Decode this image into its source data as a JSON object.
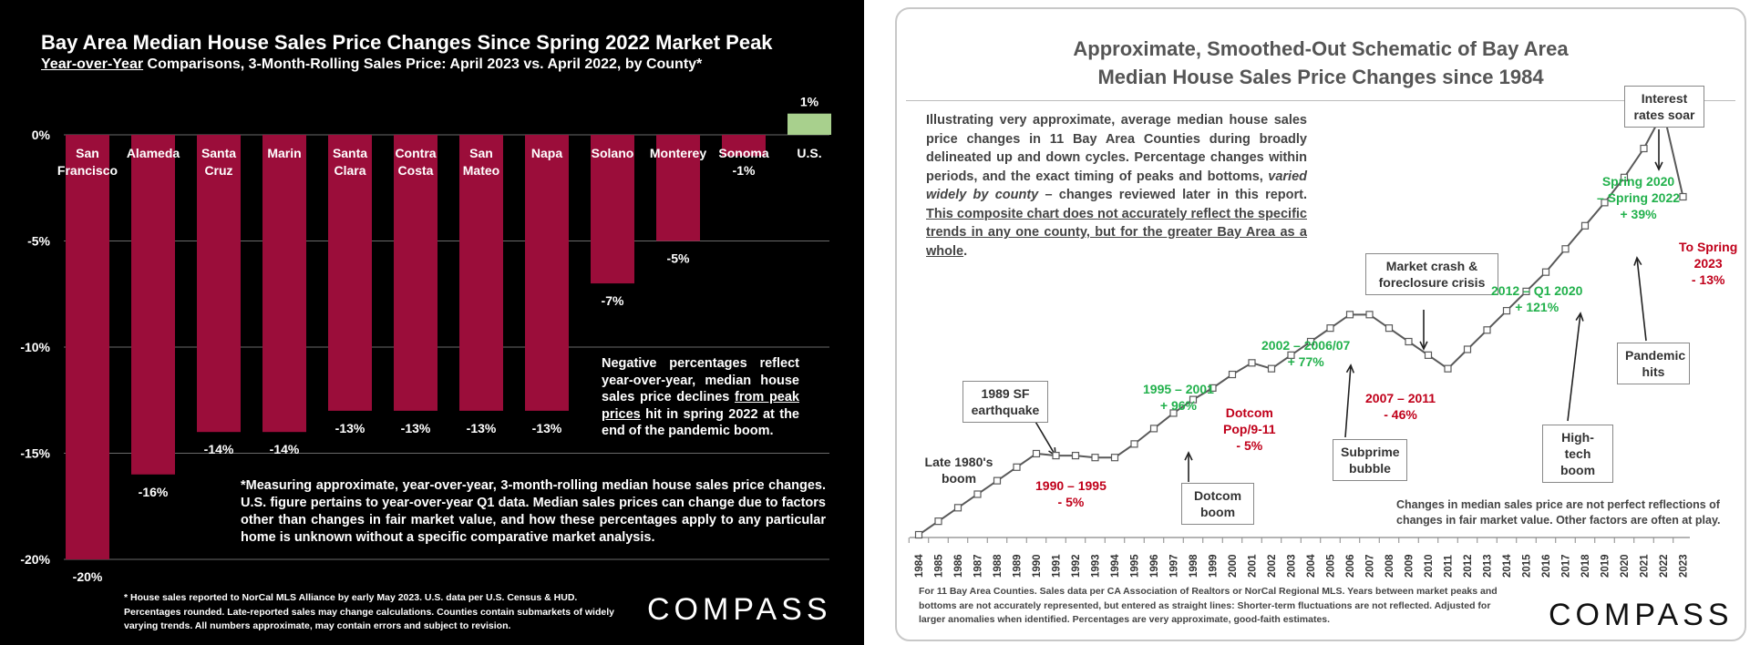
{
  "left_panel": {
    "title": "Bay Area Median House Sales Price Changes Since Spring 2022 Market Peak",
    "subtitle_underlined": "Year-over-Year",
    "subtitle_rest": " Comparisons, 3-Month-Rolling Sales Price: April 2023 vs. April 2022, by County*",
    "note_1_a": "Negative percentages reflect year-over-year, median house sales price declines ",
    "note_1_u": "from peak prices",
    "note_1_b": " hit in spring 2022 at the end of the pandemic boom.",
    "note_2": "*Measuring approximate, year-over-year, 3-month-rolling median house sales price changes. U.S. figure pertains to year-over-year Q1 data. Median sales prices can change due to factors other than changes in fair market value, and how these percentages apply to any particular home is unknown without a specific comparative market analysis.",
    "footnote": "* House sales reported to NorCal MLS Alliance by early May 2023. U.S. data per U.S. Census & HUD. Percentages rounded. Late-reported sales may change calculations. Counties contain submarkets of widely varying trends. All numbers approximate, may contain errors and subject to revision.",
    "logo": "COMPASS"
  },
  "right_panel": {
    "title_line1": "Approximate, Smoothed-Out Schematic of Bay Area",
    "title_line2": "Median House Sales Price Changes since 1984",
    "intro_a": "Illustrating very approximate, average median house sales price changes in 11 Bay Area Counties during broadly delineated up and down cycles. Percentage changes within periods, and the exact timing of peaks and bottoms, ",
    "intro_i": "varied widely by county",
    "intro_b": " – changes reviewed later in this report. ",
    "intro_u": "This composite chart does not accurately reflect the specific trends in any one county, but for the greater Bay Area as a whole",
    "intro_end": ".",
    "note": "Changes in median sales price are not perfect reflections of changes in fair market value. Other factors are often at play.",
    "footnote": "For 11 Bay Area Counties. Sales data per CA Association of Realtors or NorCal Regional MLS. Years between market peaks and bottoms are not accurately represented, but entered as straight lines: Shorter-term fluctuations are not reflected. Adjusted for larger anomalies when identified. Percentages are very approximate, good-faith estimates.",
    "logo": "COMPASS",
    "annotations": {
      "late80s": "Late 1980's boom",
      "quake": "1989 SF earthquake",
      "p9095_a": "1990 – 1995",
      "p9095_b": "- 5%",
      "p9501_a": "1995 – 2001",
      "p9501_b": "+ 96%",
      "dotboom": "Dotcom boom",
      "dotpop_a": "Dotcom",
      "dotpop_b": "Pop/9-11",
      "dotpop_c": "- 5%",
      "p0207_a": "2002 – 2006/07",
      "p0207_b": "+ 77%",
      "subprime": "Subprime bubble",
      "crash": "Market crash & foreclosure crisis",
      "p0711_a": "2007 – 2011",
      "p0711_b": "- 46%",
      "p1220_a": "2012 – Q1 2020",
      "p1220_b": "+ 121%",
      "hightech": "High-tech boom",
      "pandemic": "Pandemic hits",
      "p2022_a": "Spring 2020",
      "p2022_b": "– Spring 2022",
      "p2022_c": "+ 39%",
      "rates": "Interest rates soar",
      "p23_a": "To Spring",
      "p23_b": "2023",
      "p23_c": "- 13%"
    }
  },
  "chart_data": [
    {
      "type": "bar",
      "title": "Bay Area Median House Sales Price Changes Since Spring 2022 Market Peak",
      "categories": [
        "San Francisco",
        "Alameda",
        "Santa Cruz",
        "Marin",
        "Santa Clara",
        "Contra Costa",
        "San Mateo",
        "Napa",
        "Solano",
        "Monterey",
        "Sonoma",
        "U.S."
      ],
      "category_lines": [
        [
          "San",
          "Francisco"
        ],
        [
          "Alameda"
        ],
        [
          "Santa",
          "Cruz"
        ],
        [
          "Marin"
        ],
        [
          "Santa",
          "Clara"
        ],
        [
          "Contra",
          "Costa"
        ],
        [
          "San",
          "Mateo"
        ],
        [
          "Napa"
        ],
        [
          "Solano"
        ],
        [
          "Monterey"
        ],
        [
          "Sonoma"
        ],
        [
          "U.S."
        ]
      ],
      "values": [
        -20,
        -16,
        -14,
        -14,
        -13,
        -13,
        -13,
        -13,
        -7,
        -5,
        -1,
        1
      ],
      "value_labels": [
        "-20%",
        "-16%",
        "-14%",
        "-14%",
        "-13%",
        "-13%",
        "-13%",
        "-13%",
        "-7%",
        "-5%",
        "-1%",
        "1%"
      ],
      "ylim": [
        -20,
        0
      ],
      "yticks": [
        "0%",
        "-5%",
        "-10%",
        "-15%",
        "-20%"
      ],
      "bar_color": "#9b0d3a",
      "us_color": "#a8d08d"
    },
    {
      "type": "line",
      "title": "Approximate, Smoothed-Out Schematic of Bay Area Median House Sales Price Changes since 1984",
      "x": [
        "1984",
        "1985",
        "1986",
        "1987",
        "1988",
        "1989",
        "1990",
        "1991",
        "1992",
        "1993",
        "1994",
        "1995",
        "1996",
        "1997",
        "1998",
        "1999",
        "2000",
        "2001",
        "2002",
        "2003",
        "2004",
        "2005",
        "2006",
        "2007",
        "2008",
        "2009",
        "2010",
        "2011",
        "2012",
        "2013",
        "2014",
        "2015",
        "2016",
        "2017",
        "2018",
        "2019",
        "2020",
        "2021",
        "2022",
        "2023"
      ],
      "y": [
        0,
        7,
        14,
        21,
        28,
        35,
        42,
        41,
        41,
        40,
        40,
        47,
        55,
        63,
        70,
        76,
        83,
        89,
        86,
        93,
        100,
        107,
        114,
        114,
        107,
        100,
        93,
        86,
        96,
        106,
        116,
        126,
        136,
        148,
        160,
        172,
        185,
        200,
        219,
        175
      ],
      "units": "relative index (schematic)",
      "line_color": "#595959"
    }
  ]
}
